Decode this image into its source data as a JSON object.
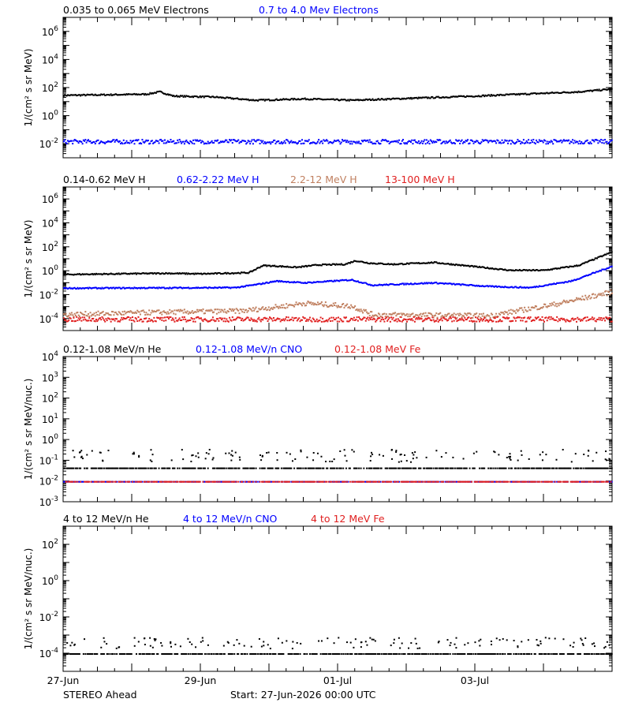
{
  "chart_data": [
    {
      "type": "scatter",
      "ylabel": "1/(cm² s sr MeV)",
      "ylog_range": [
        -3,
        7
      ],
      "ytick_exponents": [
        -2,
        0,
        2,
        4,
        6
      ],
      "series": [
        {
          "name": "0.035 to 0.065 MeV Electrons",
          "color": "#000000",
          "profile": [
            [
              0,
              1.5
            ],
            [
              1.2,
              1.58
            ],
            [
              1.4,
              1.75
            ],
            [
              1.6,
              1.45
            ],
            [
              2.2,
              1.38
            ],
            [
              2.8,
              1.15
            ],
            [
              3.5,
              1.25
            ],
            [
              4.2,
              1.15
            ],
            [
              5,
              1.28
            ],
            [
              6,
              1.45
            ],
            [
              7,
              1.65
            ],
            [
              7.5,
              1.75
            ],
            [
              8,
              1.95
            ]
          ]
        },
        {
          "name": "0.7 to 4.0 Mev Electrons",
          "color": "#0000ff",
          "profile": [
            [
              0,
              -1.8
            ],
            [
              8,
              -1.8
            ]
          ]
        }
      ]
    },
    {
      "type": "scatter",
      "ylabel": "1/(cm² s sr MeV)",
      "ylog_range": [
        -5,
        7
      ],
      "ytick_exponents": [
        -4,
        -2,
        0,
        2,
        4,
        6
      ],
      "series": [
        {
          "name": "0.14-0.62 MeV H",
          "color": "#000000",
          "profile": [
            [
              0,
              -0.25
            ],
            [
              1.5,
              -0.15
            ],
            [
              2,
              -0.2
            ],
            [
              2.7,
              -0.1
            ],
            [
              2.9,
              0.5
            ],
            [
              3.1,
              0.45
            ],
            [
              3.4,
              0.35
            ],
            [
              3.7,
              0.55
            ],
            [
              4.1,
              0.6
            ],
            [
              4.25,
              0.9
            ],
            [
              4.45,
              0.7
            ],
            [
              4.8,
              0.6
            ],
            [
              5.4,
              0.75
            ],
            [
              6,
              0.4
            ],
            [
              6.5,
              0.1
            ],
            [
              7,
              0.1
            ],
            [
              7.5,
              0.5
            ],
            [
              8,
              1.65
            ]
          ]
        },
        {
          "name": "0.62-2.22 MeV H",
          "color": "#0000ff",
          "profile": [
            [
              0,
              -1.4
            ],
            [
              2.5,
              -1.35
            ],
            [
              2.8,
              -1.1
            ],
            [
              3.1,
              -0.8
            ],
            [
              3.5,
              -0.95
            ],
            [
              4.2,
              -0.7
            ],
            [
              4.5,
              -1.15
            ],
            [
              5.4,
              -0.95
            ],
            [
              6.2,
              -1.25
            ],
            [
              6.8,
              -1.35
            ],
            [
              7.4,
              -0.8
            ],
            [
              8,
              0.45
            ]
          ]
        },
        {
          "name": "2.2-12 MeV H",
          "color": "#c08060",
          "profile": [
            [
              0,
              -3.6
            ],
            [
              1.5,
              -3.4
            ],
            [
              2.6,
              -3.3
            ],
            [
              3.2,
              -2.9
            ],
            [
              3.5,
              -2.65
            ],
            [
              4.2,
              -2.9
            ],
            [
              4.5,
              -3.6
            ],
            [
              6.2,
              -3.7
            ],
            [
              7.2,
              -2.7
            ],
            [
              8,
              -1.7
            ]
          ]
        },
        {
          "name": "13-100 MeV H",
          "color": "#e02020",
          "profile": [
            [
              0,
              -4.0
            ],
            [
              8,
              -4.0
            ]
          ]
        }
      ]
    },
    {
      "type": "scatter",
      "ylabel": "1/(cm² s sr MeV/nuc.)",
      "ylog_range": [
        -3,
        4
      ],
      "ytick_exponents": [
        -3,
        -2,
        -1,
        0,
        1,
        2,
        3,
        4
      ],
      "series": [
        {
          "name": "0.12-1.08 MeV/n He",
          "color": "#000000",
          "profile": [
            [
              0,
              -1.35
            ],
            [
              8,
              -1.35
            ]
          ]
        },
        {
          "name": "0.12-1.08 MeV/n CNO",
          "color": "#0000ff",
          "profile": [
            [
              0,
              -2.0
            ],
            [
              8,
              -2.0
            ]
          ]
        },
        {
          "name": "0.12-1.08 MeV Fe",
          "color": "#e02020",
          "profile": [
            [
              0,
              -2.0
            ],
            [
              8,
              -2.0
            ]
          ]
        }
      ]
    },
    {
      "type": "scatter",
      "ylabel": "1/(cm² s sr MeV/nuc.)",
      "ylog_range": [
        -5,
        3
      ],
      "ytick_exponents": [
        -4,
        -2,
        0,
        2
      ],
      "series": [
        {
          "name": "4 to 12 MeV/n He",
          "color": "#000000",
          "profile": [
            [
              0,
              -4.0
            ],
            [
              8,
              -4.0
            ]
          ]
        },
        {
          "name": "4 to 12 MeV/n CNO",
          "color": "#0000ff",
          "profile": []
        },
        {
          "name": "4 to 12 MeV Fe",
          "color": "#e02020",
          "profile": []
        }
      ]
    }
  ],
  "x_axis": {
    "range_days": [
      0,
      8
    ],
    "major_ticks": [
      {
        "day": 0,
        "label": "27-Jun"
      },
      {
        "day": 2,
        "label": "29-Jun"
      },
      {
        "day": 4,
        "label": "01-Jul"
      },
      {
        "day": 6,
        "label": "03-Jul"
      }
    ]
  },
  "footer": {
    "spacecraft": "STEREO Ahead",
    "start": "Start: 27-Jun-2026 00:00 UTC"
  }
}
